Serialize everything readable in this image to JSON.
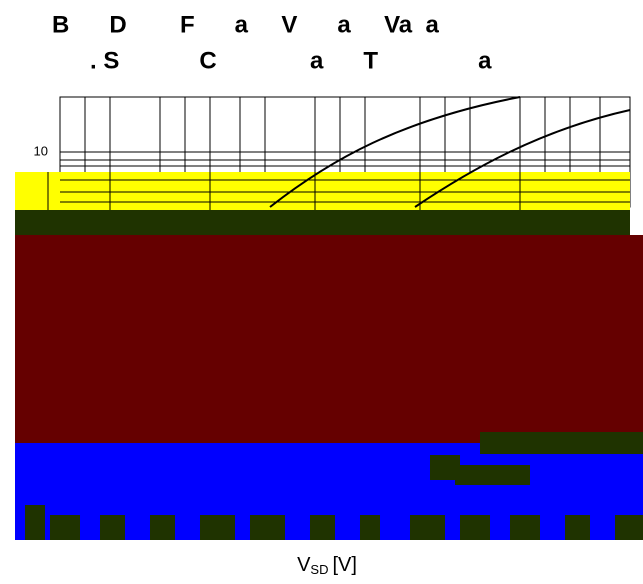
{
  "title_lines": [
    "B      D        F      a     V      a     Va  a",
    ". S            C              a      T               a"
  ],
  "y_tick_label": "10",
  "x_axis_label": {
    "main": "V",
    "subscript": "SD",
    "unit": "[V]"
  }
}
